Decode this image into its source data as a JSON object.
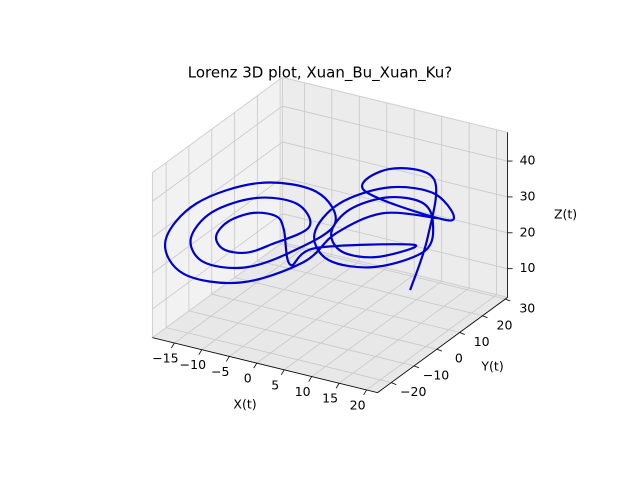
{
  "chart_data": {
    "type": "line3d",
    "title": "Lorenz 3D plot, Xuan_Bu_Xuan_Ku?",
    "xlabel": "X(t)",
    "ylabel": "Y(t)",
    "zlabel": "Z(t)",
    "xlim": [
      -19,
      22
    ],
    "ylim": [
      -26,
      31
    ],
    "zlim": [
      2,
      48
    ],
    "xticks": [
      {
        "value": -15,
        "label": "−15"
      },
      {
        "value": -10,
        "label": "−10"
      },
      {
        "value": -5,
        "label": "−5"
      },
      0,
      5,
      10,
      15,
      20
    ],
    "yticks": [
      {
        "value": -20,
        "label": "−20"
      },
      {
        "value": -10,
        "label": "−10"
      },
      0,
      10,
      20,
      30
    ],
    "zticks": [
      10,
      20,
      30,
      40
    ],
    "grid": true,
    "series": [
      {
        "color": "#0000cc",
        "x": [
          8,
          12,
          14,
          10,
          8,
          16.5,
          14.2,
          8.5,
          2.8,
          0.5,
          2.8,
          8.5,
          14.2,
          14.5,
          12.8,
          8.5,
          4.2,
          2.5,
          4.2,
          8.5,
          12.8,
          0,
          -3,
          -4.5,
          -5.7,
          -8.5,
          -11.3,
          -12.5,
          -11.3,
          -8.5,
          -5.7,
          -1.5,
          -3.5,
          -8.5,
          -13.5,
          -15.5,
          -13.5,
          -8.5,
          -3.5,
          1.5,
          -1.4,
          -8.5,
          -15.6,
          -18.5,
          -15.6,
          -8.5,
          -1.4,
          2,
          8,
          15
        ],
        "y": [
          22,
          20,
          18,
          8,
          2,
          18.9,
          18.2,
          11.7,
          3.4,
          -1.9,
          -1.2,
          5.3,
          13.6,
          16.3,
          15.7,
          10.9,
          4.7,
          0.7,
          1.3,
          6.1,
          12.3,
          0,
          -4,
          -3.3,
          -3.7,
          -6.9,
          -11.1,
          -13.7,
          -13.3,
          -10.1,
          -5.9,
          0.6,
          0,
          -5.7,
          -13,
          -17.6,
          -17,
          -11.3,
          -4,
          4.5,
          3.5,
          -4.5,
          -14.9,
          -21.5,
          -20.5,
          -12.5,
          -2.1,
          4,
          10,
          17
        ],
        "z": [
          3,
          20,
          38,
          44,
          40,
          27,
          33.8,
          36.6,
          33.8,
          27,
          20.2,
          17.4,
          20.2,
          27,
          32.1,
          34.2,
          32.1,
          27,
          21.9,
          19.8,
          21.9,
          22,
          18,
          27,
          30.4,
          31.8,
          30.4,
          27,
          23.6,
          22.2,
          23.6,
          27,
          33,
          35.4,
          33,
          27,
          21,
          18.6,
          21,
          27,
          35.5,
          39,
          35.5,
          27,
          18.5,
          15,
          18.5,
          25,
          30,
          28
        ]
      }
    ]
  }
}
